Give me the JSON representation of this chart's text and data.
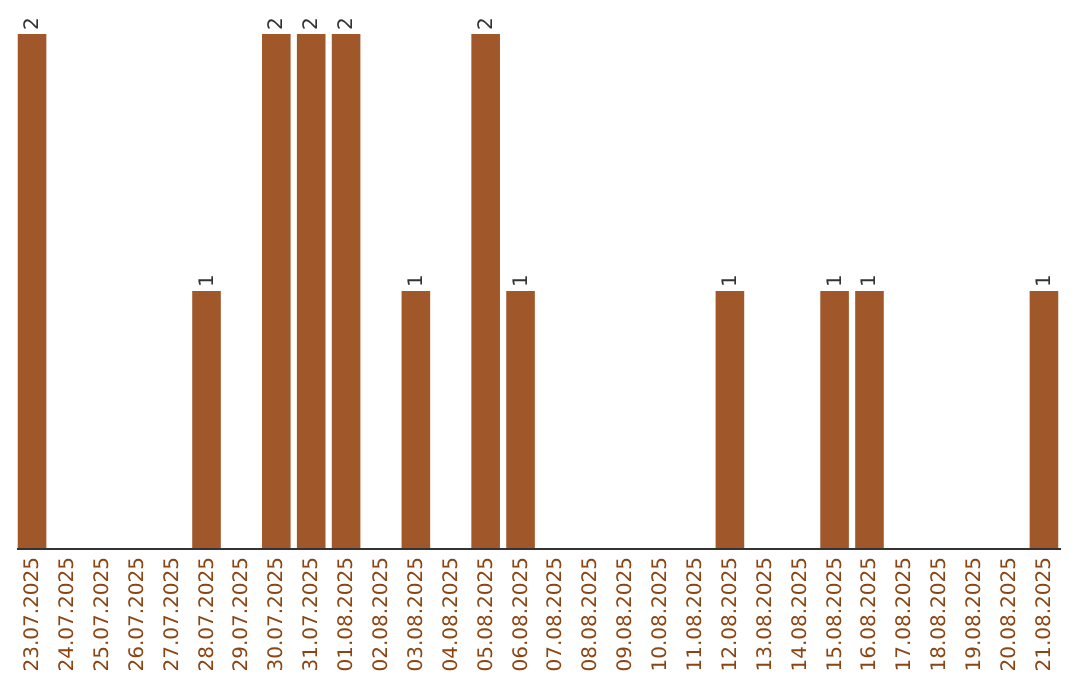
{
  "chart_data": {
    "type": "bar",
    "categories": [
      "23.07.2025",
      "24.07.2025",
      "25.07.2025",
      "26.07.2025",
      "27.07.2025",
      "28.07.2025",
      "29.07.2025",
      "30.07.2025",
      "31.07.2025",
      "01.08.2025",
      "02.08.2025",
      "03.08.2025",
      "04.08.2025",
      "05.08.2025",
      "06.08.2025",
      "07.08.2025",
      "08.08.2025",
      "09.08.2025",
      "10.08.2025",
      "11.08.2025",
      "12.08.2025",
      "13.08.2025",
      "14.08.2025",
      "15.08.2025",
      "16.08.2025",
      "17.08.2025",
      "18.08.2025",
      "19.08.2025",
      "20.08.2025",
      "21.08.2025"
    ],
    "values": [
      2,
      null,
      null,
      null,
      null,
      1,
      null,
      2,
      2,
      2,
      null,
      1,
      null,
      2,
      1,
      null,
      null,
      null,
      null,
      null,
      1,
      null,
      null,
      1,
      1,
      null,
      null,
      null,
      null,
      1
    ],
    "color": "#a0582b",
    "data_labels": true
  }
}
